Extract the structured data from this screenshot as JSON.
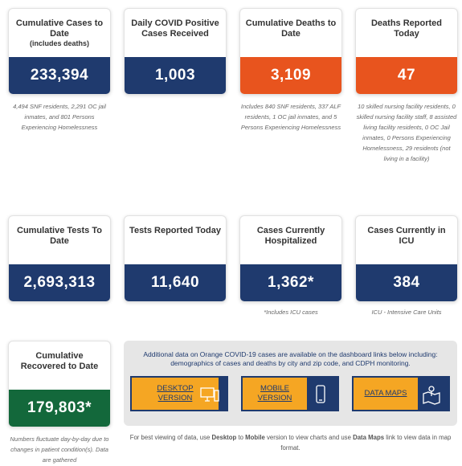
{
  "cards": [
    {
      "title": "Cumulative Cases to Date",
      "subtitle": "(includes deaths)",
      "value": "233,394",
      "note": "4,494 SNF residents, 2,291 OC jail inmates, and 801 Persons Experiencing Homelessness"
    },
    {
      "title": "Daily COVID Positive Cases Received",
      "value": "1,003"
    },
    {
      "title": "Cumulative Deaths to Date",
      "value": "3,109",
      "note": "Includes 840 SNF residents, 337 ALF residents, 1 OC jail inmates, and 5 Persons Experiencing Homelessness"
    },
    {
      "title": "Deaths Reported Today",
      "value": "47",
      "note": "10 skilled nursing facility residents, 0 skilled nursing facility staff, 8 assisted living facility residents, 0 OC Jail inmates, 0 Persons Experiencing Homelessness, 29 residents (not living in a facility)"
    },
    {
      "title": "Cumulative Tests To Date",
      "value": "2,693,313"
    },
    {
      "title": "Tests Reported Today",
      "value": "11,640"
    },
    {
      "title": "Cases Currently Hospitalized",
      "value": "1,362*",
      "note": "*Includes ICU cases"
    },
    {
      "title": "Cases Currently in ICU",
      "value": "384",
      "note": "ICU - Intensive Care Units"
    },
    {
      "title": "Cumulative Recovered to Date",
      "value": "179,803*",
      "note": "Numbers fluctuate day-by-day due to changes in patient condition(s). Data are gathered"
    }
  ],
  "panel": {
    "intro": "Additional data on Orange COVID-19 cases are available on the dashboard links below including: demographics of cases and deaths by city and zip code, and CDPH monitoring.",
    "links": [
      "DESKTOP VERSION",
      "MOBILE VERSION",
      "DATA MAPS"
    ],
    "footnote": [
      "For best viewing of data, use ",
      "Desktop",
      " to ",
      "Mobile",
      " version to view charts and use ",
      "Data Maps",
      " link to view data in map format."
    ]
  }
}
